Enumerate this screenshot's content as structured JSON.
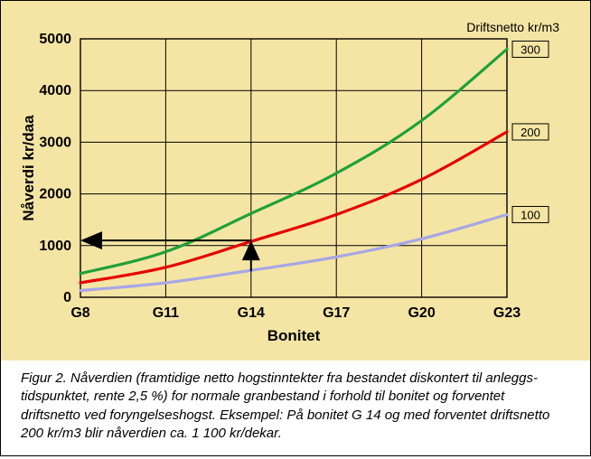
{
  "figure": {
    "type": "line",
    "background_color": "#f5e5a4",
    "plot_background": "#f5e5a4",
    "frame_border_color": "#000000",
    "axis": {
      "xlabel": "Bonitet",
      "ylabel": "Nåverdi kr/daa",
      "label_fontsize": 17,
      "label_fontweight": "bold",
      "tick_fontsize": 16,
      "tick_fontweight": "bold",
      "xlim": [
        0,
        5
      ],
      "ylim": [
        0,
        5000
      ],
      "xtick_labels": [
        "G8",
        "G11",
        "G14",
        "G17",
        "G20",
        "G23"
      ],
      "ytick_step": 1000,
      "ytick_labels": [
        "0",
        "1000",
        "2000",
        "3000",
        "4000",
        "5000"
      ],
      "grid_color": "#000000",
      "grid_width": 1,
      "axis_color": "#000000"
    },
    "series_label_title": "Driftsnetto kr/m3",
    "series_labels": [
      "300",
      "200",
      "100"
    ],
    "series": [
      {
        "name": "300",
        "color": "#1fa13a",
        "width": 3.2,
        "y": [
          460,
          880,
          1620,
          2400,
          3420,
          4800
        ]
      },
      {
        "name": "200",
        "color": "#e60000",
        "width": 3.2,
        "y": [
          280,
          580,
          1080,
          1600,
          2280,
          3200
        ]
      },
      {
        "name": "100",
        "color": "#a7a7e6",
        "width": 3.2,
        "y": [
          130,
          280,
          520,
          780,
          1130,
          1600
        ]
      }
    ],
    "annotation": {
      "x_index": 2,
      "y_value": 1100,
      "arrow_color": "#000000"
    }
  },
  "caption_lines": [
    "Figur 2. Nåverdien (framtidige netto hogstinntekter fra bestandet diskontert til anleggs-",
    "tidspunktet, rente 2,5 %) for normale granbestand i forhold til bonitet og forventet",
    "driftsnetto ved foryngelseshogst. Eksempel: På bonitet G 14 og med forventet driftsnetto",
    "200 kr/m3 blir nåverdien ca. 1 100 kr/dekar."
  ]
}
